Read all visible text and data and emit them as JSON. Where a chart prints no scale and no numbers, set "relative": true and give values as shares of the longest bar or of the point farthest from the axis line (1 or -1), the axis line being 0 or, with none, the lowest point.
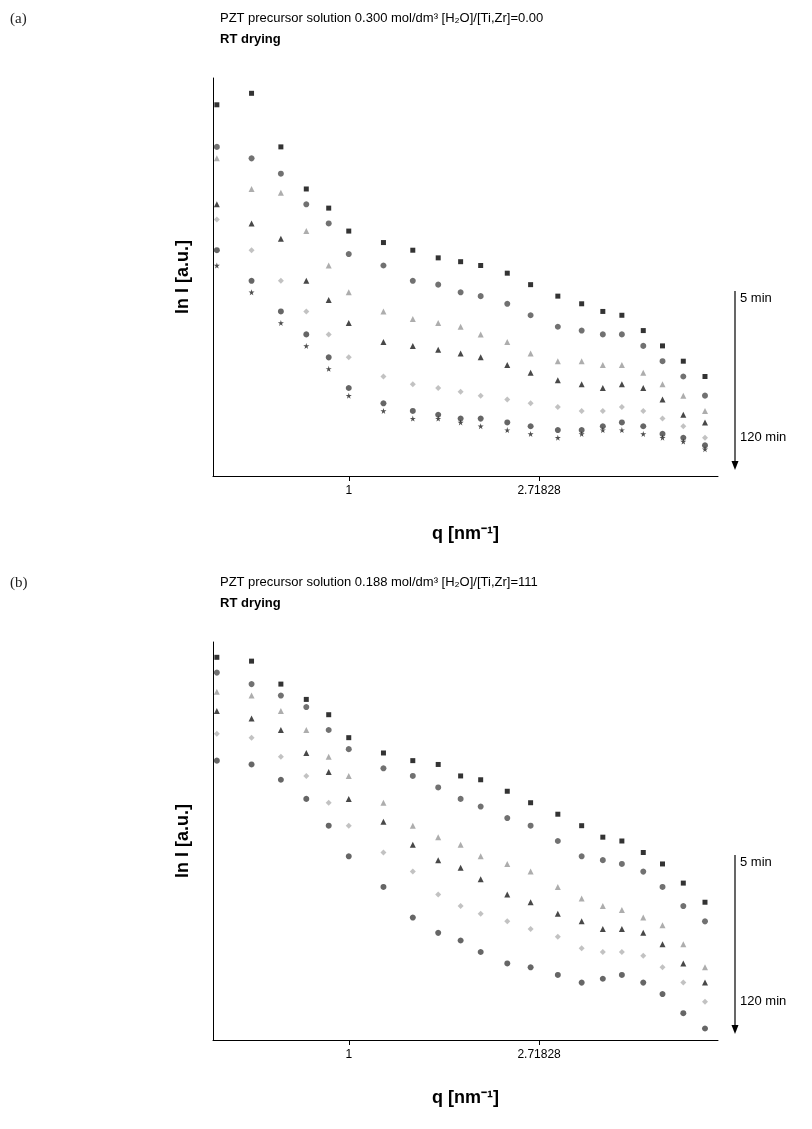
{
  "chart_data": [
    {
      "type": "scatter",
      "title": "PZT precursor solution 0.300 mol/dm³ [H₂O]/[Ti,Zr]=0.00",
      "subtitle": "RT drying",
      "xlabel": "q [nm⁻¹]",
      "ylabel": "ln I [a.u.]",
      "annotations": [
        "(a)",
        "5 min",
        "120 min"
      ],
      "log": "x",
      "relative": true,
      "grid": false,
      "tick_labels": "x",
      "xlim": [
        0.49,
        6.96
      ],
      "xticks": [
        1,
        {
          "value": 2.71828,
          "label": "2.71828"
        }
      ],
      "x": [
        0.5,
        0.6,
        0.7,
        0.8,
        0.9,
        1.0,
        1.2,
        1.4,
        1.6,
        1.8,
        2.0,
        2.3,
        2.6,
        3.0,
        3.4,
        3.8,
        4.2,
        4.7,
        5.2,
        5.8,
        6.5
      ],
      "series": [
        {
          "color": "#000000",
          "marker": "square",
          "values": [
            0.97,
            1.0,
            0.86,
            0.75,
            0.7,
            0.64,
            0.61,
            0.59,
            0.57,
            0.56,
            0.55,
            0.53,
            0.5,
            0.47,
            0.45,
            0.43,
            0.42,
            0.38,
            0.34,
            0.3,
            0.26
          ]
        },
        {
          "color": "#4d4d4d",
          "marker": "circle",
          "values": [
            0.86,
            0.83,
            0.79,
            0.71,
            0.66,
            0.58,
            0.55,
            0.51,
            0.5,
            0.48,
            0.47,
            0.45,
            0.42,
            0.39,
            0.38,
            0.37,
            0.37,
            0.34,
            0.3,
            0.26,
            0.21
          ]
        },
        {
          "color": "#999999",
          "marker": "triangle",
          "values": [
            0.83,
            0.75,
            0.74,
            0.64,
            0.55,
            0.48,
            0.43,
            0.41,
            0.4,
            0.39,
            0.37,
            0.35,
            0.32,
            0.3,
            0.3,
            0.29,
            0.29,
            0.27,
            0.24,
            0.21,
            0.17
          ]
        },
        {
          "color": "#1a1a1a",
          "marker": "triangle",
          "values": [
            0.71,
            0.66,
            0.62,
            0.51,
            0.46,
            0.4,
            0.35,
            0.34,
            0.33,
            0.32,
            0.31,
            0.29,
            0.27,
            0.25,
            0.24,
            0.23,
            0.24,
            0.23,
            0.2,
            0.16,
            0.14
          ]
        },
        {
          "color": "#b3b3b3",
          "marker": "diamond",
          "values": [
            0.67,
            0.59,
            0.51,
            0.43,
            0.37,
            0.31,
            0.26,
            0.24,
            0.23,
            0.22,
            0.21,
            0.2,
            0.19,
            0.18,
            0.17,
            0.17,
            0.18,
            0.17,
            0.15,
            0.13,
            0.1
          ]
        },
        {
          "color": "#404040",
          "marker": "circle",
          "values": [
            0.59,
            0.51,
            0.43,
            0.37,
            0.31,
            0.23,
            0.19,
            0.17,
            0.16,
            0.15,
            0.15,
            0.14,
            0.13,
            0.12,
            0.12,
            0.13,
            0.14,
            0.13,
            0.11,
            0.1,
            0.08
          ]
        },
        {
          "color": "#222222",
          "marker": "star",
          "values": [
            0.55,
            0.48,
            0.4,
            0.34,
            0.28,
            0.21,
            0.17,
            0.15,
            0.15,
            0.14,
            0.13,
            0.12,
            0.11,
            0.1,
            0.11,
            0.12,
            0.12,
            0.11,
            0.1,
            0.09,
            0.07
          ]
        }
      ]
    },
    {
      "type": "scatter",
      "title": "PZT precursor solution 0.188 mol/dm³ [H₂O]/[Ti,Zr]=111",
      "subtitle": "RT drying",
      "xlabel": "q [nm⁻¹]",
      "ylabel": "ln I [a.u.]",
      "annotations": [
        "(b)",
        "5 min",
        "120 min"
      ],
      "log": "x",
      "relative": true,
      "grid": false,
      "tick_labels": "x",
      "xlim": [
        0.49,
        6.96
      ],
      "xticks": [
        1,
        {
          "value": 2.71828,
          "label": "2.71828"
        }
      ],
      "x": [
        0.5,
        0.6,
        0.7,
        0.8,
        0.9,
        1.0,
        1.2,
        1.4,
        1.6,
        1.8,
        2.0,
        2.3,
        2.6,
        3.0,
        3.4,
        3.8,
        4.2,
        4.7,
        5.2,
        5.8,
        6.5
      ],
      "series": [
        {
          "color": "#000000",
          "marker": "square",
          "values": [
            1.0,
            0.99,
            0.93,
            0.89,
            0.85,
            0.79,
            0.75,
            0.73,
            0.72,
            0.69,
            0.68,
            0.65,
            0.62,
            0.59,
            0.56,
            0.53,
            0.52,
            0.49,
            0.46,
            0.41,
            0.36
          ]
        },
        {
          "color": "#4d4d4d",
          "marker": "circle",
          "values": [
            0.96,
            0.93,
            0.9,
            0.87,
            0.81,
            0.76,
            0.71,
            0.69,
            0.66,
            0.63,
            0.61,
            0.58,
            0.56,
            0.52,
            0.48,
            0.47,
            0.46,
            0.44,
            0.4,
            0.35,
            0.31
          ]
        },
        {
          "color": "#999999",
          "marker": "triangle",
          "values": [
            0.91,
            0.9,
            0.86,
            0.81,
            0.74,
            0.69,
            0.62,
            0.56,
            0.53,
            0.51,
            0.48,
            0.46,
            0.44,
            0.4,
            0.37,
            0.35,
            0.34,
            0.32,
            0.3,
            0.25,
            0.19
          ]
        },
        {
          "color": "#1a1a1a",
          "marker": "triangle",
          "values": [
            0.86,
            0.84,
            0.81,
            0.75,
            0.7,
            0.63,
            0.57,
            0.51,
            0.47,
            0.45,
            0.42,
            0.38,
            0.36,
            0.33,
            0.31,
            0.29,
            0.29,
            0.28,
            0.25,
            0.2,
            0.15
          ]
        },
        {
          "color": "#b3b3b3",
          "marker": "diamond",
          "values": [
            0.8,
            0.79,
            0.74,
            0.69,
            0.62,
            0.56,
            0.49,
            0.44,
            0.38,
            0.35,
            0.33,
            0.31,
            0.29,
            0.27,
            0.24,
            0.23,
            0.23,
            0.22,
            0.19,
            0.15,
            0.1
          ]
        },
        {
          "color": "#404040",
          "marker": "circle",
          "values": [
            0.73,
            0.72,
            0.68,
            0.63,
            0.56,
            0.48,
            0.4,
            0.32,
            0.28,
            0.26,
            0.23,
            0.2,
            0.19,
            0.17,
            0.15,
            0.16,
            0.17,
            0.15,
            0.12,
            0.07,
            0.03
          ]
        }
      ]
    }
  ]
}
